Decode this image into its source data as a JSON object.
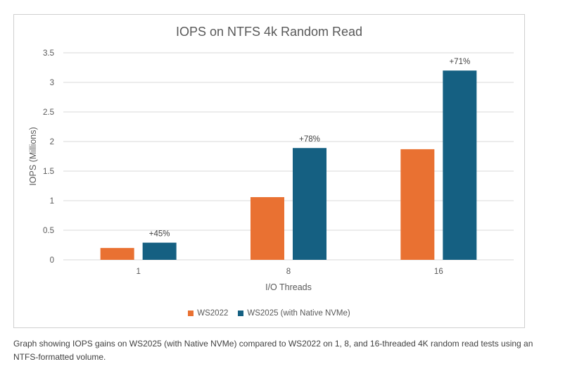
{
  "caption": "Graph showing IOPS gains on WS2025 (with Native NVMe) compared to WS2022 on 1, 8, and 16-threaded 4K random read tests using an NTFS-formatted volume.",
  "chart_data": {
    "type": "bar",
    "title": "IOPS on NTFS 4k Random Read",
    "xlabel": "I/O Threads",
    "ylabel": "IOPS (Millions)",
    "categories": [
      "1",
      "8",
      "16"
    ],
    "ylim": [
      0,
      3.5
    ],
    "yticks": [
      "0",
      "0.5",
      "1",
      "1.5",
      "2",
      "2.5",
      "3",
      "3.5"
    ],
    "grid": true,
    "legend_position": "bottom",
    "series": [
      {
        "name": "WS2022",
        "color": "#E97132",
        "values": [
          0.2,
          1.06,
          1.87
        ],
        "labels": [
          "",
          "",
          ""
        ]
      },
      {
        "name": "WS2025 (with Native NVMe)",
        "color": "#156082",
        "values": [
          0.29,
          1.89,
          3.2
        ],
        "labels": [
          "+45%",
          "+78%",
          "+71%"
        ]
      }
    ]
  }
}
